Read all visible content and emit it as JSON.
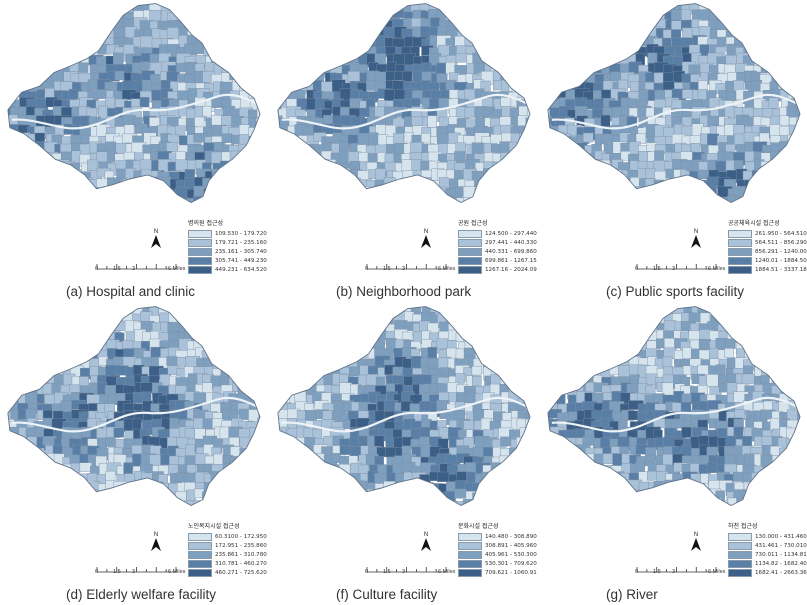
{
  "palette": [
    "#d6e4ee",
    "#a9c2d9",
    "#7f9fbf",
    "#5a7fa6",
    "#3b5f86"
  ],
  "north_label": "N",
  "scale_ticks": [
    "0",
    "1.5",
    "3",
    "6 Miles"
  ],
  "panels": [
    {
      "caption": "(a) Hospital and clinic",
      "legend_title": "병의원 접근성",
      "legend": [
        "109.530 - 179.720",
        "179.721 - 235.160",
        "235.161 - 305.740",
        "305.741 - 449.230",
        "449.231 - 634.520"
      ]
    },
    {
      "caption": "(b) Neighborhood park",
      "legend_title": "공원 접근성",
      "legend": [
        "124.500 - 297.440",
        "297.441 - 440.330",
        "440.331 - 699.860",
        "699.861 - 1267.15",
        "1267.16 - 2024.09"
      ]
    },
    {
      "caption": "(c) Public sports facility",
      "legend_title": "공공체육시설 접근성",
      "legend": [
        "261.950 - 564.510",
        "564.511 - 856.290",
        "856.291 - 1240.00",
        "1240.01 - 1884.50",
        "1884.51 - 3337.18"
      ]
    },
    {
      "caption": "(d) Elderly welfare facility",
      "legend_title": "노인복지시설 접근성",
      "legend": [
        "60.3100 - 172.950",
        "172.951 - 235.860",
        "235.861 - 310.780",
        "310.781 - 460.270",
        "460.271 - 725.620"
      ]
    },
    {
      "caption": "(f) Culture facility",
      "legend_title": "문화시설 접근성",
      "legend": [
        "140.480 - 308.890",
        "308.891 - 405.960",
        "405.961 - 530.300",
        "530.301 - 709.620",
        "709.621 - 1060.91"
      ]
    },
    {
      "caption": "(g) River",
      "legend_title": "하천 접근성",
      "legend": [
        "130.000 - 431.460",
        "431.461 - 730.010",
        "730.011 - 1134.81",
        "1134.82 - 1682.40",
        "1682.41 - 2663.36"
      ]
    }
  ]
}
